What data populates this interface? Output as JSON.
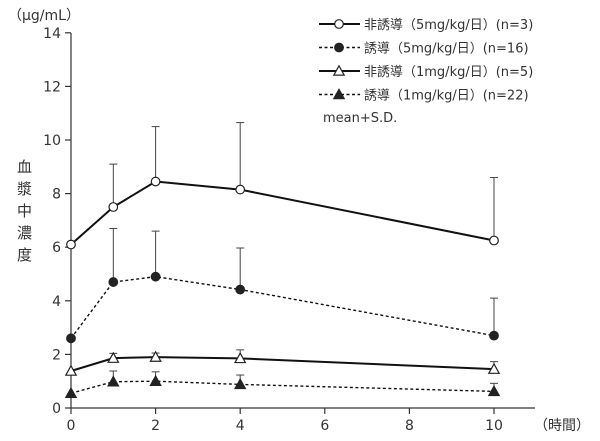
{
  "chart_data": {
    "type": "line",
    "title": "",
    "ylabel": "血漿中濃度",
    "y_unit": "（μg/mL）",
    "x_unit": "（時間）",
    "x_ticks": [
      "0",
      "2",
      "4",
      "6",
      "8",
      "10"
    ],
    "y_ticks": [
      "0",
      "2",
      "4",
      "6",
      "8",
      "10",
      "12",
      "14"
    ],
    "xlim": [
      0,
      10.5
    ],
    "ylim": [
      0,
      14
    ],
    "grid": false,
    "legend_position": "top-right",
    "note": "mean+S.D.",
    "series": [
      {
        "name": "非誘導（5mg/kg/日）(n=3)",
        "line": "solid",
        "marker": "circle-open",
        "points": [
          {
            "x": 0,
            "y": 6.1,
            "sd": 0
          },
          {
            "x": 1,
            "y": 7.5,
            "sd": 1.6
          },
          {
            "x": 2,
            "y": 8.45,
            "sd": 2.05
          },
          {
            "x": 4,
            "y": 8.15,
            "sd": 2.5
          },
          {
            "x": 10,
            "y": 6.25,
            "sd": 2.35
          }
        ]
      },
      {
        "name": "誘導（5mg/kg/日）(n=16)",
        "line": "dotted",
        "marker": "circle-filled",
        "points": [
          {
            "x": 0,
            "y": 2.6,
            "sd": 0
          },
          {
            "x": 1,
            "y": 4.7,
            "sd": 2.0
          },
          {
            "x": 2,
            "y": 4.9,
            "sd": 1.7
          },
          {
            "x": 4,
            "y": 4.42,
            "sd": 1.55
          },
          {
            "x": 10,
            "y": 2.7,
            "sd": 1.4
          }
        ]
      },
      {
        "name": "非誘導（1mg/kg/日）(n=5)",
        "line": "solid",
        "marker": "triangle-open",
        "points": [
          {
            "x": 0,
            "y": 1.38,
            "sd": 0
          },
          {
            "x": 1,
            "y": 1.86,
            "sd": 0.18
          },
          {
            "x": 2,
            "y": 1.9,
            "sd": 0.15
          },
          {
            "x": 4,
            "y": 1.85,
            "sd": 0.32
          },
          {
            "x": 10,
            "y": 1.45,
            "sd": 0.28
          }
        ]
      },
      {
        "name": "誘導（1mg/kg/日）(n=22)",
        "line": "dotted",
        "marker": "triangle-filled",
        "points": [
          {
            "x": 0,
            "y": 0.55,
            "sd": 0
          },
          {
            "x": 1,
            "y": 0.98,
            "sd": 0.4
          },
          {
            "x": 2,
            "y": 1.0,
            "sd": 0.35
          },
          {
            "x": 4,
            "y": 0.88,
            "sd": 0.35
          },
          {
            "x": 10,
            "y": 0.62,
            "sd": 0.3
          }
        ]
      }
    ]
  }
}
